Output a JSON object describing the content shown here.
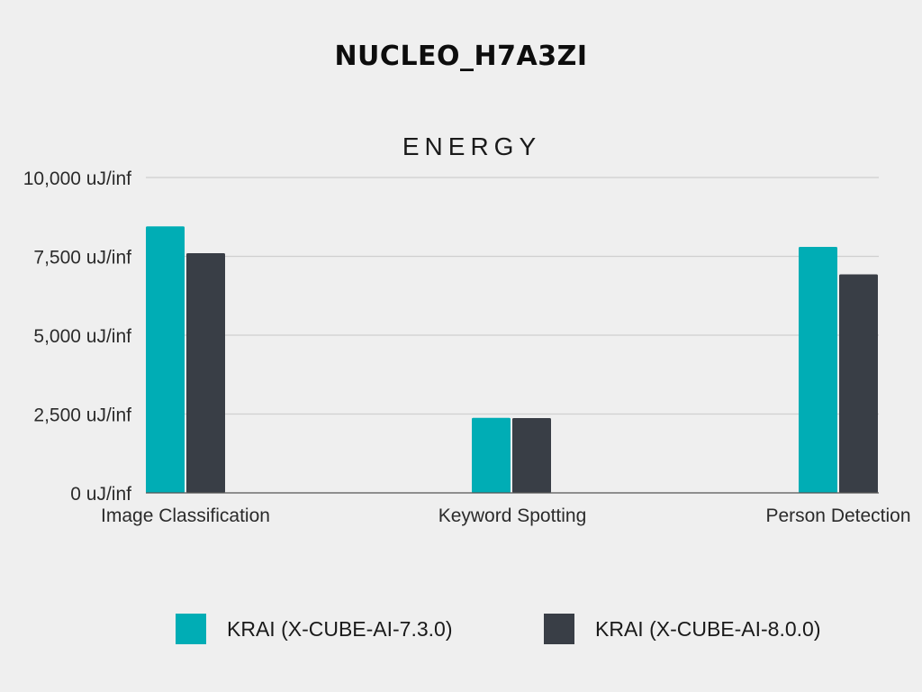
{
  "chart_data": {
    "type": "bar",
    "title": "NUCLEO_H7A3ZI",
    "subtitle": "ENERGY",
    "categories": [
      "Image Classification",
      "Keyword Spotting",
      "Person Detection"
    ],
    "series": [
      {
        "name": "KRAI (X-CUBE-AI-7.3.0)",
        "color": "#00adb5",
        "values": [
          8450,
          2380,
          7800
        ]
      },
      {
        "name": "KRAI (X-CUBE-AI-8.0.0)",
        "color": "#393e46",
        "values": [
          7600,
          2370,
          6930
        ]
      }
    ],
    "yticks": [
      0,
      2500,
      5000,
      7500,
      10000
    ],
    "ytick_labels": [
      "0 uJ/inf",
      "2,500 uJ/inf",
      "5,000 uJ/inf",
      "7,500 uJ/inf",
      "10,000 uJ/inf"
    ],
    "ylim": [
      0,
      10000
    ],
    "grid": true,
    "legend_position": "bottom"
  }
}
